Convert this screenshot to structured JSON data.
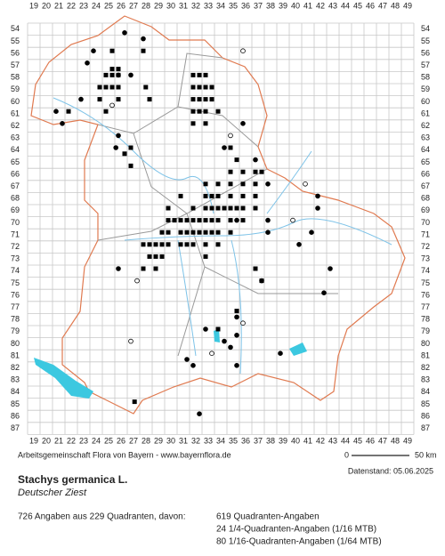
{
  "map": {
    "columns": [
      "19",
      "20",
      "21",
      "22",
      "23",
      "24",
      "25",
      "26",
      "27",
      "28",
      "29",
      "30",
      "31",
      "32",
      "33",
      "34",
      "35",
      "36",
      "37",
      "38",
      "39",
      "40",
      "41",
      "42",
      "43",
      "44",
      "45",
      "46",
      "47",
      "48",
      "49"
    ],
    "rows": [
      "54",
      "55",
      "56",
      "57",
      "58",
      "59",
      "60",
      "61",
      "62",
      "63",
      "64",
      "65",
      "66",
      "67",
      "68",
      "69",
      "70",
      "71",
      "72",
      "73",
      "74",
      "75",
      "76",
      "77",
      "78",
      "79",
      "80",
      "81",
      "82",
      "83",
      "84",
      "85",
      "86",
      "87"
    ]
  },
  "footer": {
    "credit": "Arbeitsgemeinschaft Flora von Bayern - www.bayernflora.de",
    "scale_start": "0",
    "scale_end": "50 km",
    "date": "Datenstand: 05.06.2025",
    "species": "Stachys germanica L.",
    "common_name": "Deutscher Ziest",
    "summary": "726 Angaben aus 229 Quadranten, davon:",
    "details": [
      "619 Quadranten-Angaben",
      "24 1/4-Quadranten-Angaben (1/16 MTB)",
      "80 1/16-Quadranten-Angaben (1/64 MTB)"
    ]
  }
}
